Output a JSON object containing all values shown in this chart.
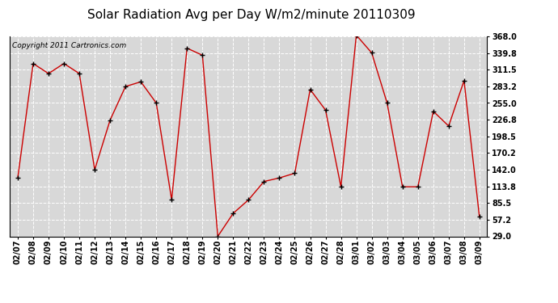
{
  "title": "Solar Radiation Avg per Day W/m2/minute 20110309",
  "copyright": "Copyright 2011 Cartronics.com",
  "dates": [
    "02/07",
    "02/08",
    "02/09",
    "02/10",
    "02/11",
    "02/12",
    "02/13",
    "02/14",
    "02/15",
    "02/16",
    "02/17",
    "02/18",
    "02/19",
    "02/20",
    "02/21",
    "02/22",
    "02/23",
    "02/24",
    "02/25",
    "02/26",
    "02/27",
    "02/28",
    "03/01",
    "03/02",
    "03/03",
    "03/04",
    "03/05",
    "03/06",
    "03/07",
    "03/08",
    "03/09"
  ],
  "values": [
    128,
    322,
    305,
    322,
    305,
    142,
    226,
    283,
    291,
    255,
    91,
    348,
    336,
    29,
    68,
    91,
    122,
    128,
    136,
    278,
    243,
    113,
    370,
    340,
    255,
    113,
    113,
    241,
    216,
    293,
    62
  ],
  "ylim": [
    29.0,
    368.0
  ],
  "yticks": [
    29.0,
    57.2,
    85.5,
    113.8,
    142.0,
    170.2,
    198.5,
    226.8,
    255.0,
    283.2,
    311.5,
    339.8,
    368.0
  ],
  "line_color": "#cc0000",
  "marker": "+",
  "marker_color": "#000000",
  "bg_color": "#ffffff",
  "plot_bg_color": "#d8d8d8",
  "grid_color": "#ffffff",
  "title_fontsize": 11,
  "tick_fontsize": 7,
  "copyright_fontsize": 6.5
}
